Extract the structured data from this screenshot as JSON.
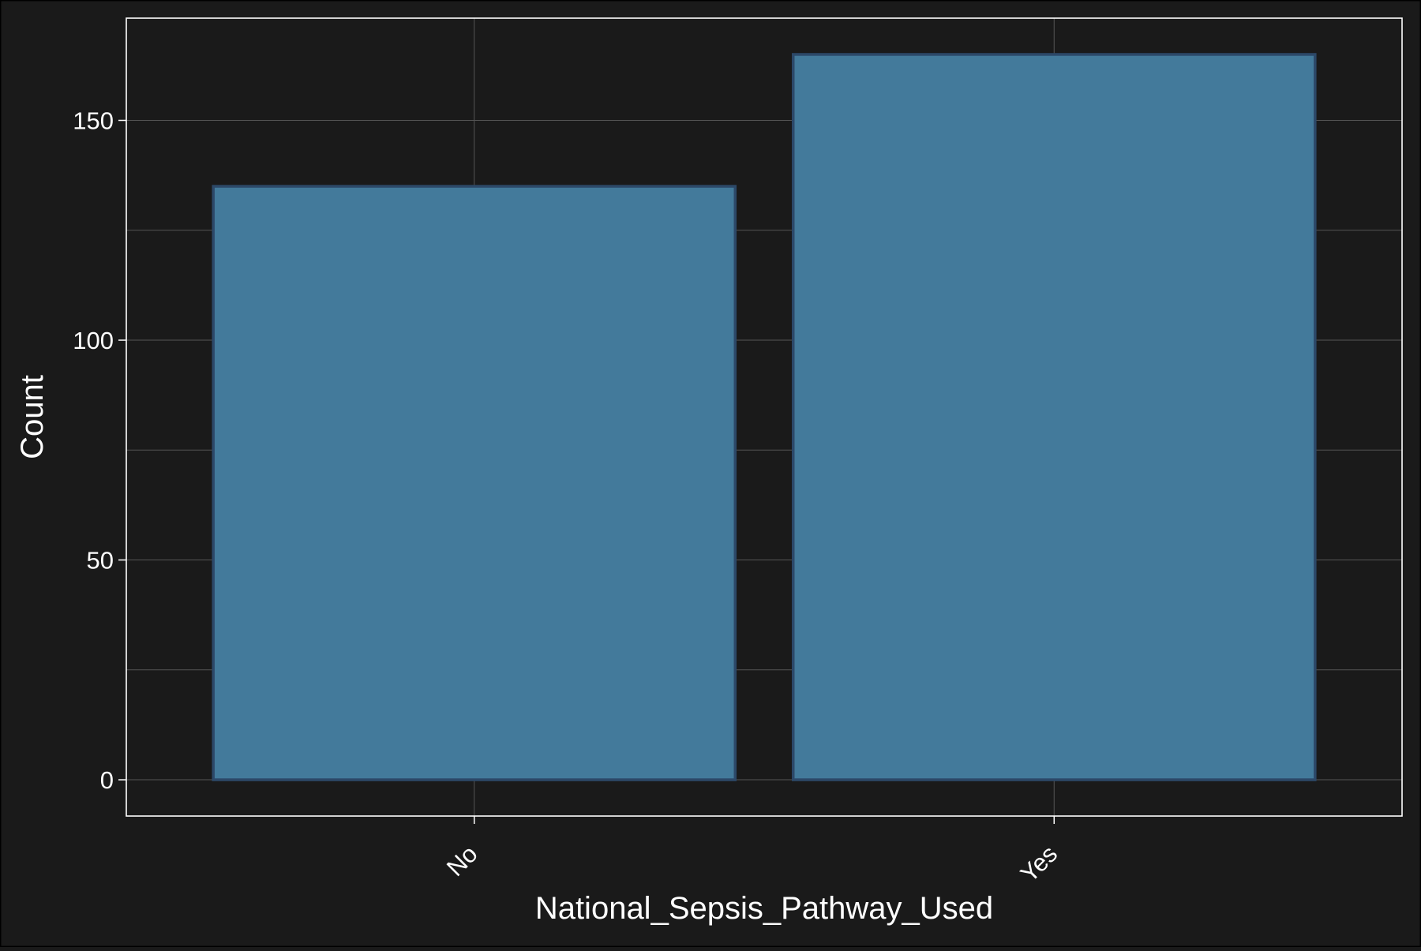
{
  "chart_data": {
    "type": "bar",
    "title": "",
    "xlabel": "National_Sepsis_Pathway_Used",
    "ylabel": "Count",
    "categories": [
      "No",
      "Yes"
    ],
    "values": [
      135,
      165
    ],
    "ylim": [
      -8.25,
      173.25
    ],
    "yticks": [
      0,
      50,
      100,
      150
    ],
    "grid": true,
    "colors": {
      "background": "#1a1a1a",
      "panel": "#1a1a1a",
      "bar_fill": "#437a9b",
      "bar_stroke": "#2c4868",
      "grid": "#555555",
      "axis": "#ffffff",
      "text": "#ffffff"
    }
  }
}
